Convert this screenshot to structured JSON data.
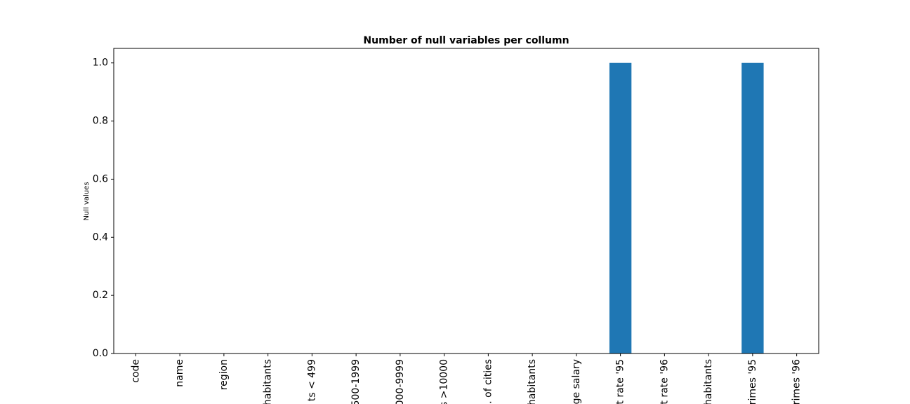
{
  "chart_data": {
    "type": "bar",
    "title": "Number of null variables per collumn",
    "y_label": "Null values",
    "categories": [
      "code",
      "name",
      "region",
      "habitants",
      "ts < 499",
      "500-1999",
      "000-9999",
      "s >10000",
      ". of cities",
      "habitants",
      "ge salary",
      "t rate '95",
      "t rate '96",
      "habitants",
      "rimes '95",
      "rimes '96"
    ],
    "values": [
      0,
      0,
      0,
      0,
      0,
      0,
      0,
      0,
      0,
      0,
      0,
      1,
      0,
      0,
      1,
      0
    ],
    "color": "#1f77b4",
    "ylim": [
      0,
      1.05
    ],
    "yticks": [
      {
        "value": 0,
        "label": "0.0"
      },
      0.2,
      0.4,
      0.6,
      0.8,
      {
        "value": 1,
        "label": "1.0"
      }
    ],
    "grid": false
  }
}
